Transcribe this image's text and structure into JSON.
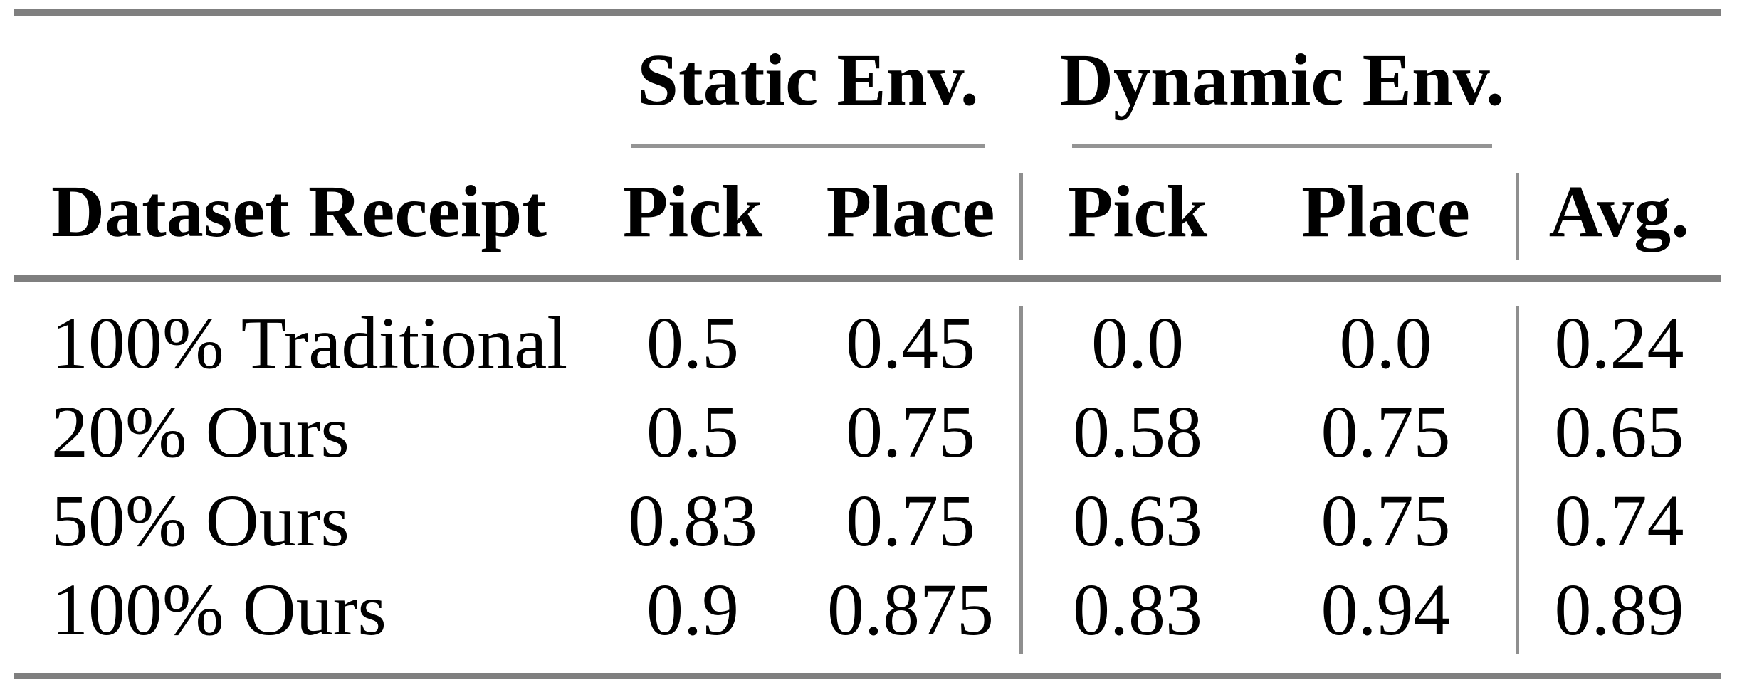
{
  "table": {
    "style": {
      "rule_color": "#7f7f7f",
      "cmidrule_color": "#949494",
      "vline_color": "#8f8f8f",
      "text_color": "#000000",
      "background": "#ffffff"
    },
    "group_headers": {
      "static": "Static Env.",
      "dynamic": "Dynamic Env."
    },
    "column_headers": {
      "dataset": "Dataset Receipt",
      "static_pick": "Pick",
      "static_place": "Place",
      "dynamic_pick": "Pick",
      "dynamic_place": "Place",
      "avg": "Avg."
    },
    "rows": [
      {
        "dataset": "100% Traditional",
        "static_pick": "0.5",
        "static_place": "0.45",
        "dynamic_pick": "0.0",
        "dynamic_place": "0.0",
        "avg": "0.24"
      },
      {
        "dataset": "20% Ours",
        "static_pick": "0.5",
        "static_place": "0.75",
        "dynamic_pick": "0.58",
        "dynamic_place": "0.75",
        "avg": "0.65"
      },
      {
        "dataset": "50% Ours",
        "static_pick": "0.83",
        "static_place": "0.75",
        "dynamic_pick": "0.63",
        "dynamic_place": "0.75",
        "avg": "0.74"
      },
      {
        "dataset": "100% Ours",
        "static_pick": "0.9",
        "static_place": "0.875",
        "dynamic_pick": "0.83",
        "dynamic_place": "0.94",
        "avg": "0.89"
      }
    ]
  },
  "chart_data": {
    "type": "table",
    "title": "",
    "columns": [
      "Dataset Receipt",
      "Static Env. Pick",
      "Static Env. Place",
      "Dynamic Env. Pick",
      "Dynamic Env. Place",
      "Avg."
    ],
    "rows": [
      [
        "100% Traditional",
        0.5,
        0.45,
        0.0,
        0.0,
        0.24
      ],
      [
        "20% Ours",
        0.5,
        0.75,
        0.58,
        0.75,
        0.65
      ],
      [
        "50% Ours",
        0.83,
        0.75,
        0.63,
        0.75,
        0.74
      ],
      [
        "100% Ours",
        0.9,
        0.875,
        0.83,
        0.94,
        0.89
      ]
    ]
  }
}
